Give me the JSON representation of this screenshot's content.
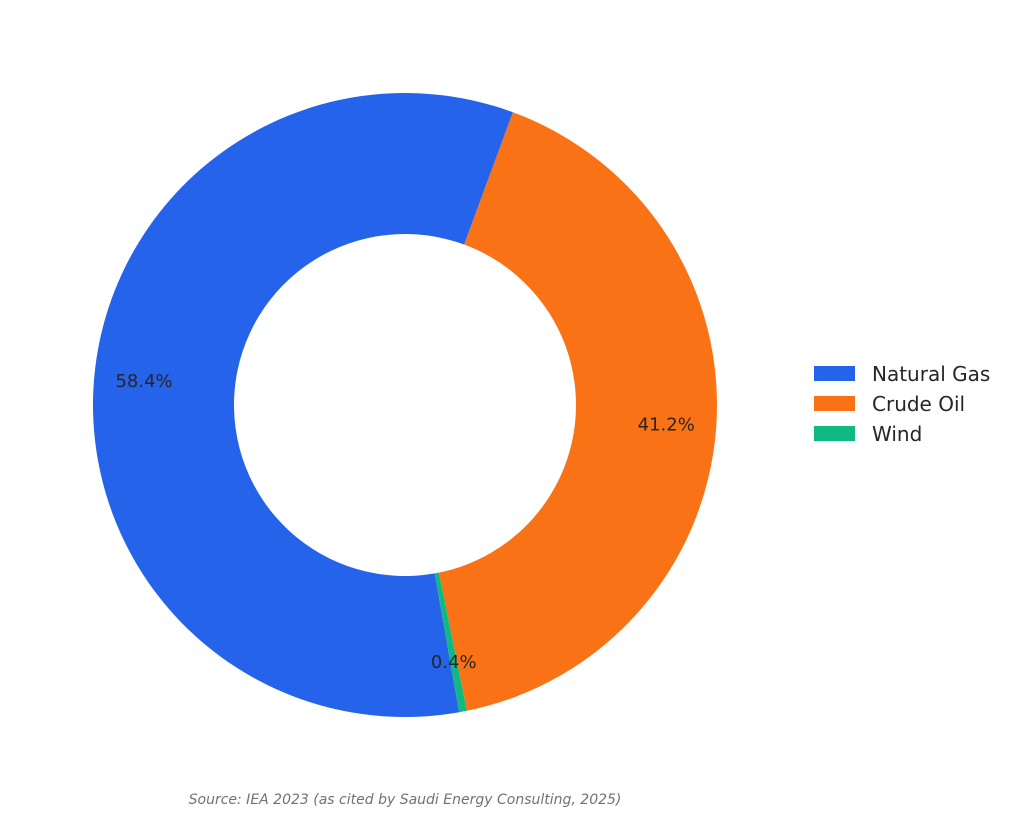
{
  "chart_data": {
    "type": "pie",
    "style": "donut",
    "title": "",
    "categories": [
      "Natural Gas",
      "Crude Oil",
      "Wind"
    ],
    "values": [
      58.4,
      41.2,
      0.4
    ],
    "value_labels": [
      "58.4%",
      "41.2%",
      "0.4%"
    ],
    "colors": [
      "#2563eb",
      "#f97316",
      "#10b981"
    ],
    "legend_position": "right",
    "source": "Source: IEA 2023 (as cited by Saudi Energy Consulting, 2025)"
  }
}
